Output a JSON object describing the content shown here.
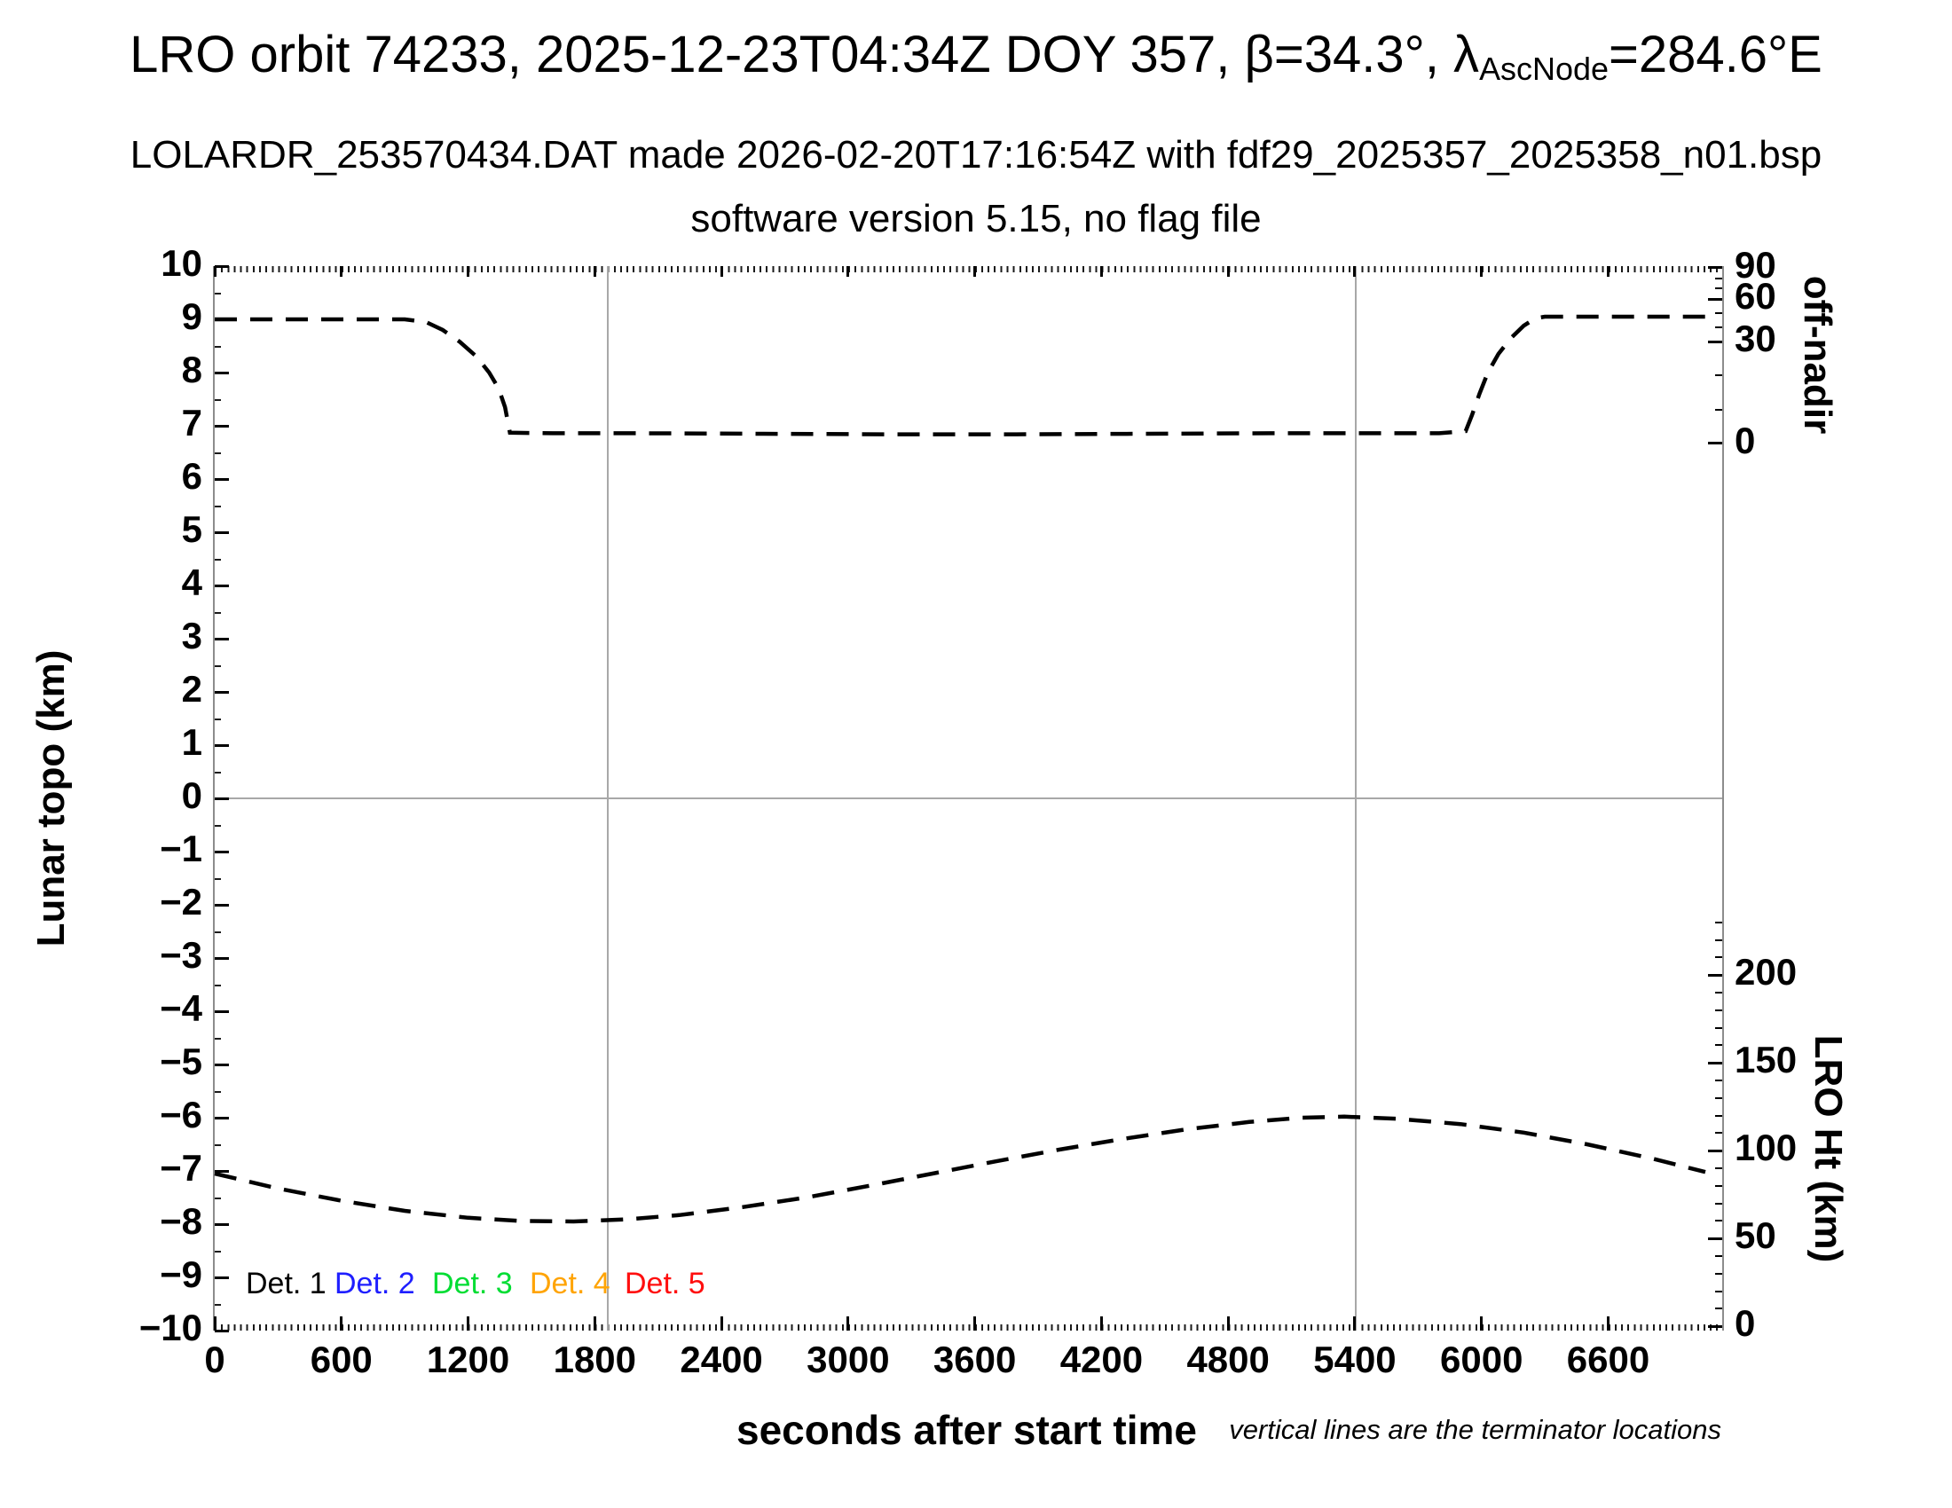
{
  "page": {
    "title_full": "LRO orbit 74233, 2025-12-23T04:34Z DOY 357, β=34.3°, λAscNode=284.6°E",
    "title_part1": "LRO orbit 74233, 2025-12-23T04:34Z DOY 357, β=34.3°, λ",
    "title_subscript": "AscNode",
    "title_part2": "=284.6°E",
    "subtitle1": "LOLARDR_253570434.DAT made 2026-02-20T17:16:54Z with fdf29_2025357_2025358_n01.bsp",
    "subtitle2": "software version 5.15, no flag file"
  },
  "chart_data": {
    "type": "line",
    "title": "LRO orbit 74233, 2025-12-23T04:34Z DOY 357, β=34.3°, λAscNode=284.6°E",
    "subtitle": "LOLARDR_253570434.DAT made 2026-02-20T17:16:54Z with fdf29_2025357_2025358_n01.bsp, software version 5.15, no flag file",
    "footnote": "vertical lines are the terminator locations",
    "grid": "off",
    "x_axis": {
      "label": "seconds after start time",
      "min": 0,
      "max": 7140,
      "major_tick_step": 600,
      "minor_tick_step": 30,
      "tick_labels": [
        "0",
        "600",
        "1200",
        "1800",
        "2400",
        "3000",
        "3600",
        "4200",
        "4800",
        "5400",
        "6000",
        "6600"
      ]
    },
    "y_left": {
      "label": "Lunar topo (km)",
      "min": -10,
      "max": 10,
      "major_tick_step": 1,
      "minor_tick_step": 0.5,
      "tick_values": [
        10,
        9,
        8,
        7,
        6,
        5,
        4,
        3,
        2,
        1,
        0,
        -1,
        -2,
        -3,
        -4,
        -5,
        -6,
        -7,
        -8,
        -9,
        -10
      ]
    },
    "y_right_top": {
      "label": "off-nadir",
      "units": "degrees",
      "ticks": [
        {
          "label": "90",
          "angle_deg": 90,
          "left_units": 9.97
        },
        {
          "label": "60",
          "angle_deg": 60,
          "left_units": 9.38
        },
        {
          "label": "30",
          "angle_deg": 30,
          "left_units": 8.58
        },
        {
          "label": "0",
          "angle_deg": 0,
          "left_units": 6.67
        }
      ],
      "minor_tick_angles_deg": [
        10,
        20,
        40,
        50,
        70,
        80
      ]
    },
    "y_right_bottom": {
      "label": "LRO Ht (km)",
      "units": "km",
      "ticks": [
        {
          "label": "200",
          "km": 200,
          "left_units": -3.32
        },
        {
          "label": "150",
          "km": 150,
          "left_units": -4.97
        },
        {
          "label": "100",
          "km": 100,
          "left_units": -6.62
        },
        {
          "label": "50",
          "km": 50,
          "left_units": -8.27
        },
        {
          "label": "0",
          "km": 0,
          "left_units": -9.92
        }
      ],
      "minor_tick_step_km": 10,
      "minor_tick_range_km": [
        0,
        230
      ]
    },
    "zero_line_left_units": 0,
    "terminator_lines_s": [
      1860,
      5405
    ],
    "series": [
      {
        "name": "spacecraft off-nadir angle",
        "axis": "y_right_top",
        "color": "#000000",
        "style": "dashed",
        "approx_high_plateau_deg": 46,
        "approx_low_plateau_deg": 3,
        "points_s_leftunits": [
          [
            0,
            9.0
          ],
          [
            300,
            9.0
          ],
          [
            600,
            9.0
          ],
          [
            900,
            9.0
          ],
          [
            1000,
            8.95
          ],
          [
            1080,
            8.8
          ],
          [
            1160,
            8.58
          ],
          [
            1240,
            8.3
          ],
          [
            1300,
            8.0
          ],
          [
            1345,
            7.7
          ],
          [
            1375,
            7.35
          ],
          [
            1392,
            7.0
          ],
          [
            1398,
            6.87
          ],
          [
            1600,
            6.86
          ],
          [
            2000,
            6.86
          ],
          [
            2600,
            6.85
          ],
          [
            3200,
            6.84
          ],
          [
            3800,
            6.84
          ],
          [
            4400,
            6.85
          ],
          [
            5000,
            6.86
          ],
          [
            5400,
            6.86
          ],
          [
            5800,
            6.86
          ],
          [
            5925,
            6.9
          ],
          [
            5955,
            7.2
          ],
          [
            5990,
            7.6
          ],
          [
            6030,
            8.0
          ],
          [
            6080,
            8.35
          ],
          [
            6140,
            8.65
          ],
          [
            6200,
            8.88
          ],
          [
            6255,
            9.02
          ],
          [
            6300,
            9.05
          ],
          [
            6600,
            9.05
          ],
          [
            6900,
            9.05
          ],
          [
            7080,
            9.05
          ]
        ]
      },
      {
        "name": "LRO height above surface",
        "axis": "y_right_bottom",
        "color": "#000000",
        "style": "dashed",
        "approx_start_km": 87,
        "approx_min_km": 60,
        "approx_max_km": 119,
        "points_s_leftunits": [
          [
            0,
            -7.05
          ],
          [
            300,
            -7.33
          ],
          [
            600,
            -7.56
          ],
          [
            900,
            -7.75
          ],
          [
            1200,
            -7.88
          ],
          [
            1450,
            -7.94
          ],
          [
            1700,
            -7.95
          ],
          [
            1950,
            -7.91
          ],
          [
            2200,
            -7.83
          ],
          [
            2500,
            -7.68
          ],
          [
            2800,
            -7.5
          ],
          [
            3100,
            -7.28
          ],
          [
            3400,
            -7.05
          ],
          [
            3700,
            -6.82
          ],
          [
            4000,
            -6.6
          ],
          [
            4300,
            -6.4
          ],
          [
            4600,
            -6.22
          ],
          [
            4900,
            -6.08
          ],
          [
            5150,
            -6.0
          ],
          [
            5350,
            -5.98
          ],
          [
            5600,
            -6.02
          ],
          [
            5900,
            -6.12
          ],
          [
            6200,
            -6.28
          ],
          [
            6500,
            -6.5
          ],
          [
            6800,
            -6.76
          ],
          [
            7060,
            -7.02
          ]
        ]
      }
    ],
    "legend": [
      {
        "label": "Det. 1",
        "color": "#000000"
      },
      {
        "label": "Det. 2",
        "color": "#1f1fff"
      },
      {
        "label": "Det. 3",
        "color": "#00dd33"
      },
      {
        "label": "Det. 4",
        "color": "#ffa405"
      },
      {
        "label": "Det. 5",
        "color": "#ff0f0f"
      }
    ],
    "legend_position": "inside bottom-left",
    "colors": {
      "curve": "#000000",
      "frame": "#8c8c8c",
      "guide_lines": "#a8a8a8",
      "text": "#000000"
    }
  }
}
